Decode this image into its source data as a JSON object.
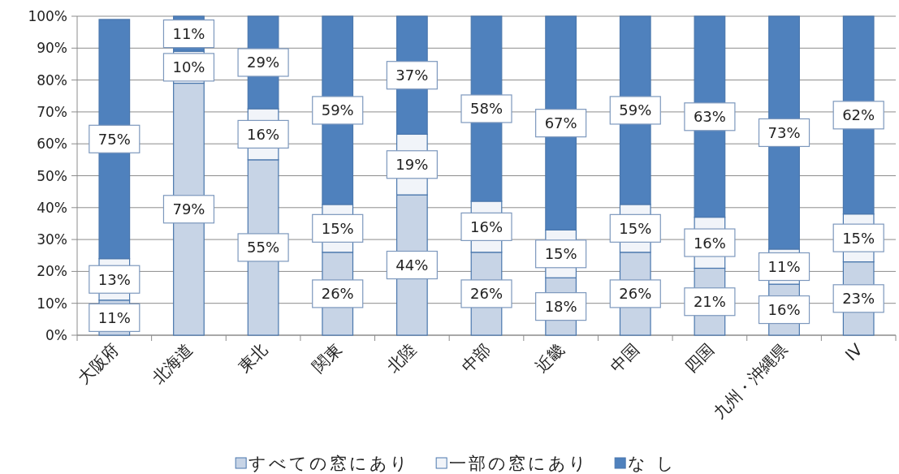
{
  "chart_data": {
    "type": "bar",
    "stacked": true,
    "categories": [
      "大阪府",
      "北海道",
      "東北",
      "関東",
      "北陸",
      "中部",
      "近畿",
      "中国",
      "四国",
      "九州・沖縄県",
      "IV"
    ],
    "series": [
      {
        "name": "すべての窓にあり",
        "color": "#c7d4e6",
        "values": [
          11,
          79,
          55,
          26,
          44,
          26,
          18,
          26,
          21,
          16,
          23
        ],
        "value_labels": [
          "11%",
          "79%",
          "55%",
          "26%",
          "44%",
          "26%",
          "18%",
          "26%",
          "21%",
          "16%",
          "23%"
        ]
      },
      {
        "name": "一部の窓にあり",
        "color": "#f1f4f9",
        "values": [
          13,
          10,
          16,
          15,
          19,
          16,
          15,
          15,
          16,
          11,
          15
        ],
        "value_labels": [
          "13%",
          "10%",
          "16%",
          "15%",
          "19%",
          "16%",
          "15%",
          "15%",
          "16%",
          "11%",
          "15%"
        ]
      },
      {
        "name": "な し",
        "color": "#4f81bd",
        "values": [
          75,
          11,
          29,
          59,
          37,
          58,
          67,
          59,
          63,
          73,
          62
        ],
        "value_labels": [
          "75%",
          "11%",
          "29%",
          "59%",
          "37%",
          "58%",
          "67%",
          "59%",
          "63%",
          "73%",
          "62%"
        ]
      }
    ],
    "ylim": [
      0,
      100
    ],
    "yticks": [
      {
        "value": 0,
        "label": "0%"
      },
      {
        "value": 10,
        "label": "10%"
      },
      {
        "value": 20,
        "label": "20%"
      },
      {
        "value": 30,
        "label": "30%"
      },
      {
        "value": 40,
        "label": "40%"
      },
      {
        "value": 50,
        "label": "50%"
      },
      {
        "value": 60,
        "label": "60%"
      },
      {
        "value": 70,
        "label": "70%"
      },
      {
        "value": 80,
        "label": "80%"
      },
      {
        "value": 90,
        "label": "90%"
      },
      {
        "value": 100,
        "label": "100%"
      }
    ],
    "grid": "y",
    "legend": "bottom"
  }
}
